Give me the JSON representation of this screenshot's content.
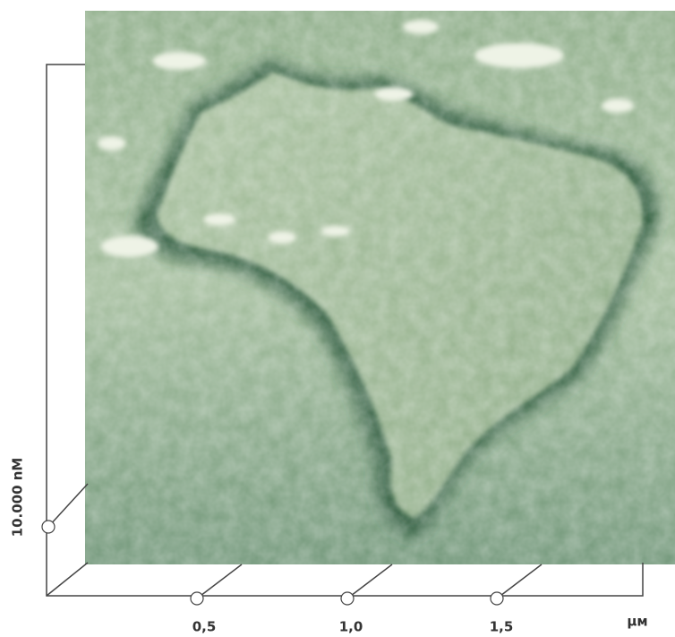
{
  "z_axis": {
    "label": "10.000 nM"
  },
  "x_axis": {
    "tick_labels": [
      "0,5",
      "1,0",
      "1,5"
    ],
    "unit": "μм"
  }
}
